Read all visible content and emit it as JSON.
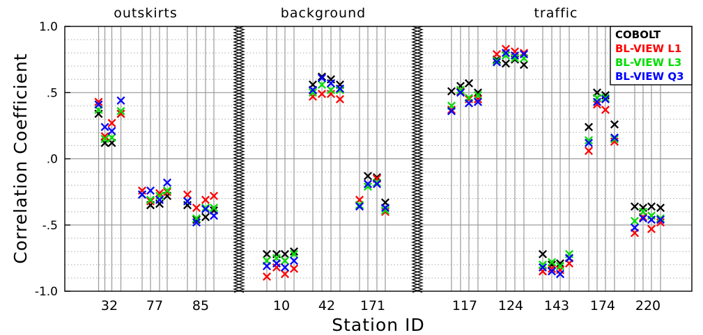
{
  "chart_data": {
    "type": "scatter",
    "xlabel": "Station ID",
    "ylabel": "Correlation Coefficient",
    "ylim": [
      -1.0,
      1.0
    ],
    "yticks": [
      {
        "value": 1.0,
        "label": "1.0"
      },
      {
        "value": 0.5,
        "label": ".5"
      },
      {
        "value": 0.0,
        "label": ".0"
      },
      {
        "value": -0.5,
        "label": "-.5"
      },
      {
        "value": -1.0,
        "label": "-1.0"
      }
    ],
    "groups": [
      {
        "title": "outskirts",
        "stations": [
          "32",
          "77",
          "85"
        ]
      },
      {
        "title": "background",
        "stations": [
          "10",
          "42",
          "171"
        ]
      },
      {
        "title": "traffic",
        "stations": [
          "117",
          "124",
          "143",
          "174",
          "220"
        ]
      }
    ],
    "legend": {
      "position": "top-right",
      "entries": [
        {
          "name": "COBOLT",
          "color": "#000000"
        },
        {
          "name": "BL-VIEW L1",
          "color": "#ff0000"
        },
        {
          "name": "BL-VIEW L3",
          "color": "#00dd00"
        },
        {
          "name": "BL-VIEW Q3",
          "color": "#0000ff"
        }
      ]
    },
    "marker": "x",
    "grid": true,
    "sub_points_per_station": 4,
    "series": [
      {
        "name": "COBOLT",
        "values": {
          "32": [
            0.34,
            0.12,
            0.12,
            0.34
          ],
          "77": [
            -0.27,
            -0.35,
            -0.34,
            -0.28
          ],
          "85": [
            -0.35,
            -0.46,
            -0.44,
            -0.39
          ],
          "10": [
            -0.72,
            -0.72,
            -0.72,
            -0.7
          ],
          "42": [
            0.56,
            0.62,
            0.6,
            0.56
          ],
          "171": [
            -0.35,
            -0.13,
            -0.14,
            -0.33
          ],
          "117": [
            0.51,
            0.55,
            0.57,
            0.5
          ],
          "124": [
            0.75,
            0.72,
            0.75,
            0.71
          ],
          "143": [
            -0.72,
            -0.8,
            -0.79,
            -0.75
          ],
          "174": [
            0.24,
            0.5,
            0.48,
            0.26
          ],
          "220": [
            -0.36,
            -0.37,
            -0.36,
            -0.37
          ]
        }
      },
      {
        "name": "BL-VIEW L1",
        "values": {
          "32": [
            0.43,
            0.17,
            0.27,
            0.34
          ],
          "77": [
            -0.24,
            -0.32,
            -0.26,
            -0.25
          ],
          "85": [
            -0.27,
            -0.37,
            -0.31,
            -0.28
          ],
          "10": [
            -0.89,
            -0.82,
            -0.87,
            -0.83
          ],
          "42": [
            0.47,
            0.49,
            0.49,
            0.45
          ],
          "171": [
            -0.31,
            -0.19,
            -0.15,
            -0.4
          ],
          "117": [
            0.37,
            0.51,
            0.45,
            0.45
          ],
          "124": [
            0.79,
            0.83,
            0.81,
            0.8
          ],
          "143": [
            -0.85,
            -0.83,
            -0.84,
            -0.79
          ],
          "174": [
            0.06,
            0.41,
            0.37,
            0.13
          ],
          "220": [
            -0.56,
            -0.44,
            -0.53,
            -0.48
          ]
        }
      },
      {
        "name": "BL-VIEW L3",
        "values": {
          "32": [
            0.37,
            0.15,
            0.16,
            0.36
          ],
          "77": [
            -0.27,
            -0.31,
            -0.28,
            -0.24
          ],
          "85": [
            -0.32,
            -0.45,
            -0.37,
            -0.37
          ],
          "10": [
            -0.77,
            -0.75,
            -0.77,
            -0.72
          ],
          "42": [
            0.5,
            0.56,
            0.52,
            0.52
          ],
          "171": [
            -0.35,
            -0.21,
            -0.18,
            -0.39
          ],
          "117": [
            0.4,
            0.52,
            0.46,
            0.48
          ],
          "124": [
            0.74,
            0.78,
            0.76,
            0.76
          ],
          "143": [
            -0.8,
            -0.78,
            -0.81,
            -0.72
          ],
          "174": [
            0.14,
            0.46,
            0.46,
            0.15
          ],
          "220": [
            -0.47,
            -0.4,
            -0.43,
            -0.45
          ]
        }
      },
      {
        "name": "BL-VIEW Q3",
        "values": {
          "32": [
            0.41,
            0.24,
            0.21,
            0.44
          ],
          "77": [
            -0.27,
            -0.24,
            -0.31,
            -0.18
          ],
          "85": [
            -0.32,
            -0.48,
            -0.38,
            -0.43
          ],
          "10": [
            -0.81,
            -0.79,
            -0.82,
            -0.77
          ],
          "42": [
            0.52,
            0.61,
            0.57,
            0.53
          ],
          "171": [
            -0.36,
            -0.19,
            -0.19,
            -0.37
          ],
          "117": [
            0.36,
            0.5,
            0.42,
            0.43
          ],
          "124": [
            0.73,
            0.8,
            0.78,
            0.79
          ],
          "143": [
            -0.82,
            -0.85,
            -0.87,
            -0.75
          ],
          "174": [
            0.12,
            0.43,
            0.45,
            0.16
          ],
          "220": [
            -0.52,
            -0.45,
            -0.46,
            -0.46
          ]
        }
      }
    ]
  }
}
